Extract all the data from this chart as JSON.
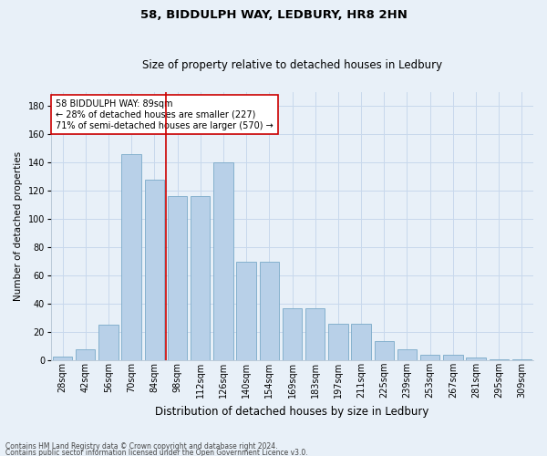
{
  "title1": "58, BIDDULPH WAY, LEDBURY, HR8 2HN",
  "title2": "Size of property relative to detached houses in Ledbury",
  "xlabel": "Distribution of detached houses by size in Ledbury",
  "ylabel": "Number of detached properties",
  "categories": [
    "28sqm",
    "42sqm",
    "56sqm",
    "70sqm",
    "84sqm",
    "98sqm",
    "112sqm",
    "126sqm",
    "140sqm",
    "154sqm",
    "169sqm",
    "183sqm",
    "197sqm",
    "211sqm",
    "225sqm",
    "239sqm",
    "253sqm",
    "267sqm",
    "281sqm",
    "295sqm",
    "309sqm"
  ],
  "values": [
    3,
    8,
    25,
    146,
    128,
    116,
    116,
    140,
    70,
    70,
    37,
    37,
    26,
    26,
    14,
    8,
    4,
    4,
    2,
    1,
    1
  ],
  "bar_color": "#b8d0e8",
  "bar_edge_color": "#7aaac8",
  "grid_color": "#c8d8ec",
  "background_color": "#e8f0f8",
  "vline_x": 4.5,
  "vline_color": "#cc0000",
  "annotation_text": "58 BIDDULPH WAY: 89sqm\n← 28% of detached houses are smaller (227)\n71% of semi-detached houses are larger (570) →",
  "annotation_box_color": "#ffffff",
  "annotation_box_edge": "#cc0000",
  "footer1": "Contains HM Land Registry data © Crown copyright and database right 2024.",
  "footer2": "Contains public sector information licensed under the Open Government Licence v3.0.",
  "ylim": [
    0,
    190
  ],
  "yticks": [
    0,
    20,
    40,
    60,
    80,
    100,
    120,
    140,
    160,
    180
  ],
  "title1_fontsize": 9.5,
  "title2_fontsize": 8.5,
  "xlabel_fontsize": 8.5,
  "ylabel_fontsize": 7.5,
  "tick_fontsize": 7,
  "annotation_fontsize": 7,
  "footer_fontsize": 5.5
}
